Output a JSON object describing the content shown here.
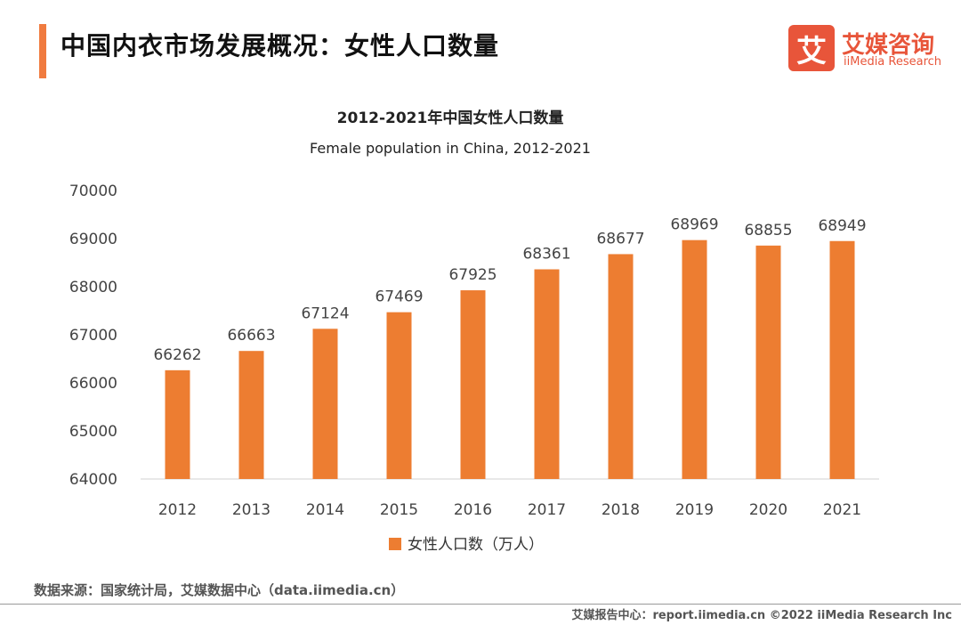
{
  "header": {
    "title": "中国内衣市场发展概况：女性人口数量"
  },
  "logo": {
    "mark": "艾",
    "name_cn": "艾媒咨询",
    "name_en": "iiMedia Research"
  },
  "colors": {
    "accent": "#f07b3f",
    "bar": "#ed7d31",
    "logo": "#e8553a"
  },
  "chart_data": {
    "type": "bar",
    "title": "2012-2021年中国女性人口数量",
    "subtitle": "Female population in China, 2012-2021",
    "categories": [
      "2012",
      "2013",
      "2014",
      "2015",
      "2016",
      "2017",
      "2018",
      "2019",
      "2020",
      "2021"
    ],
    "series": [
      {
        "name": "女性人口数（万人）",
        "values": [
          66262,
          66663,
          67124,
          67469,
          67925,
          68361,
          68677,
          68969,
          68855,
          68949
        ]
      }
    ],
    "ylim": [
      64000,
      70000
    ],
    "yticks": [
      "70000",
      "69000",
      "68000",
      "67000",
      "66000",
      "65000",
      "64000"
    ],
    "data_labels": true,
    "grid": false,
    "legend_position": "bottom"
  },
  "footer": {
    "source": "数据来源：国家统计局，艾媒数据中心（data.iimedia.cn）",
    "right": "艾媒报告中心：report.iimedia.cn   ©2022  iiMedia Research  Inc"
  }
}
